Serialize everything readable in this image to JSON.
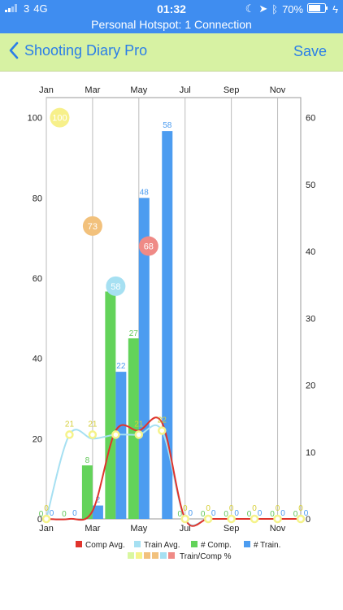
{
  "status": {
    "carrier": "3",
    "network": "4G",
    "time": "01:32",
    "battery": "70%"
  },
  "hotspot": "Personal Hotspot: 1 Connection",
  "nav": {
    "back_label": "Shooting Diary Pro",
    "save_label": "Save"
  },
  "chart_data": {
    "type": "bar",
    "categories": [
      "Jan",
      "Feb",
      "Mar",
      "Apr",
      "May",
      "Jun",
      "Jul",
      "Aug",
      "Sep",
      "Oct",
      "Nov",
      "Dec"
    ],
    "x_tick_labels": [
      "Jan",
      "Mar",
      "May",
      "Jul",
      "Sep",
      "Nov"
    ],
    "y_left_ticks": [
      0,
      20,
      40,
      60,
      80,
      100
    ],
    "y_right_ticks": [
      0,
      10,
      20,
      30,
      40,
      50,
      60
    ],
    "ylim_left": [
      0,
      105
    ],
    "ylim_right": [
      0,
      63
    ],
    "series": [
      {
        "name": "Comp Avg.",
        "kind": "line",
        "axis": "left",
        "color": "#e0342c",
        "values": [
          0,
          0,
          2,
          22,
          22,
          24,
          0,
          0,
          0,
          0,
          0,
          0
        ]
      },
      {
        "name": "Train Avg.",
        "kind": "line",
        "axis": "left",
        "color": "#a6e0f2",
        "values": [
          0,
          21,
          20,
          21,
          21,
          22,
          0,
          0,
          0,
          0,
          0,
          0
        ]
      },
      {
        "name": "# Comp.",
        "kind": "bar",
        "axis": "right",
        "color": "#63d35a",
        "values": [
          0,
          0,
          8,
          34,
          27,
          0,
          0,
          0,
          0,
          0,
          0,
          0
        ],
        "labels": [
          "0",
          "0",
          "8",
          "34",
          "27",
          "",
          "0",
          "0",
          "0",
          "0",
          "0",
          "0"
        ]
      },
      {
        "name": "# Train.",
        "kind": "bar",
        "axis": "right",
        "color": "#4c9cf0",
        "values": [
          0,
          0,
          2,
          22,
          48,
          58,
          0,
          0,
          0,
          0,
          0,
          0
        ],
        "labels": [
          "0",
          "0",
          "2",
          "22",
          "48",
          "58",
          "0",
          "0",
          "0",
          "0",
          "0",
          "0"
        ]
      },
      {
        "name": "Train/Comp %",
        "kind": "point",
        "axis": "left",
        "color": "#f5f38a",
        "values": [
          0,
          21,
          21,
          21,
          21,
          22,
          0,
          0,
          0,
          0,
          0,
          0
        ],
        "labels": [
          "0",
          "21",
          "21",
          "",
          "21",
          "22",
          "0",
          "0",
          "0",
          "0",
          "0",
          "0"
        ]
      }
    ],
    "bubbles": [
      {
        "label": "100",
        "value": 100,
        "x": "Feb",
        "color": "#f7f08a"
      },
      {
        "label": "73",
        "value": 73,
        "x": "Mar",
        "color": "#f2c17c"
      },
      {
        "label": "58",
        "value": 58,
        "x": "Apr",
        "color": "#a6e0f2"
      },
      {
        "label": "68",
        "value": 68,
        "x": "May",
        "color": "#ef8a86"
      }
    ],
    "legend": [
      "Comp Avg.",
      "Train Avg.",
      "# Comp.",
      "# Train.",
      "Train/Comp %"
    ],
    "legend_placement": "bottom",
    "legend_swatch_colors": [
      "#e0342c",
      "#a6e0f2",
      "#63d35a",
      "#4c9cf0"
    ],
    "legend_extra_swatches": [
      "#d9f7a0",
      "#f5f38a",
      "#f2c17c",
      "#f2c17c",
      "#a6e0f2",
      "#ef8a86"
    ],
    "grid": true
  }
}
